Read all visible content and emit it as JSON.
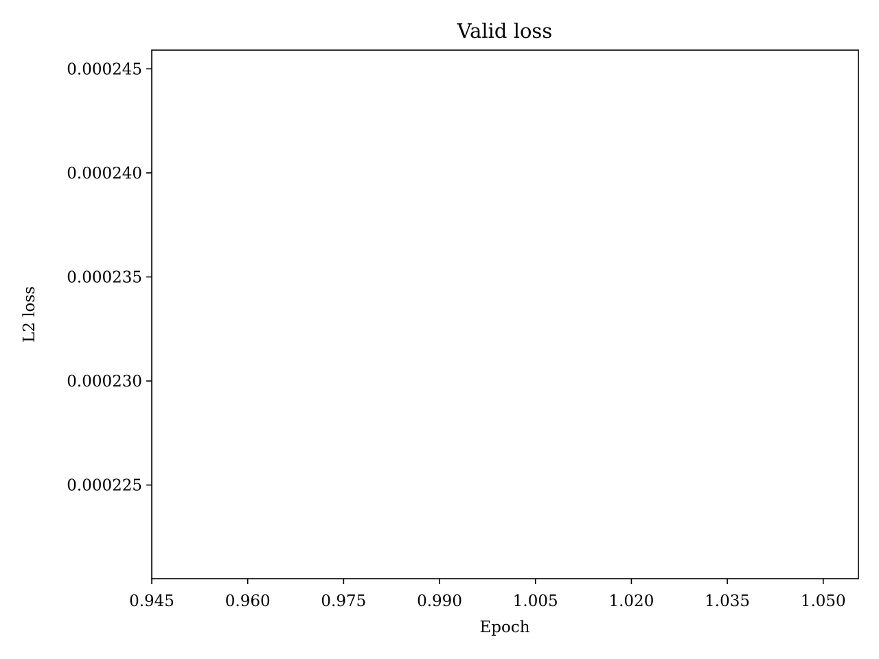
{
  "chart_data": {
    "type": "line",
    "title": "Valid loss",
    "xlabel": "Epoch",
    "ylabel": "L2 loss",
    "xlim": [
      0.945,
      1.0555
    ],
    "ylim": [
      0.0002205,
      0.0002459
    ],
    "x_ticks": [
      {
        "value": 0.945,
        "label": "0.945"
      },
      {
        "value": 0.96,
        "label": "0.960"
      },
      {
        "value": 0.975,
        "label": "0.975"
      },
      {
        "value": 0.99,
        "label": "0.990"
      },
      {
        "value": 1.005,
        "label": "1.005"
      },
      {
        "value": 1.02,
        "label": "1.020"
      },
      {
        "value": 1.035,
        "label": "1.035"
      },
      {
        "value": 1.05,
        "label": "1.050"
      }
    ],
    "y_ticks": [
      {
        "value": 0.000225,
        "label": "0.000225"
      },
      {
        "value": 0.00023,
        "label": "0.000230"
      },
      {
        "value": 0.000235,
        "label": "0.000235"
      },
      {
        "value": 0.00024,
        "label": "0.000240"
      },
      {
        "value": 0.000245,
        "label": "0.000245"
      }
    ],
    "series": [],
    "grid": false,
    "legend": "none"
  }
}
